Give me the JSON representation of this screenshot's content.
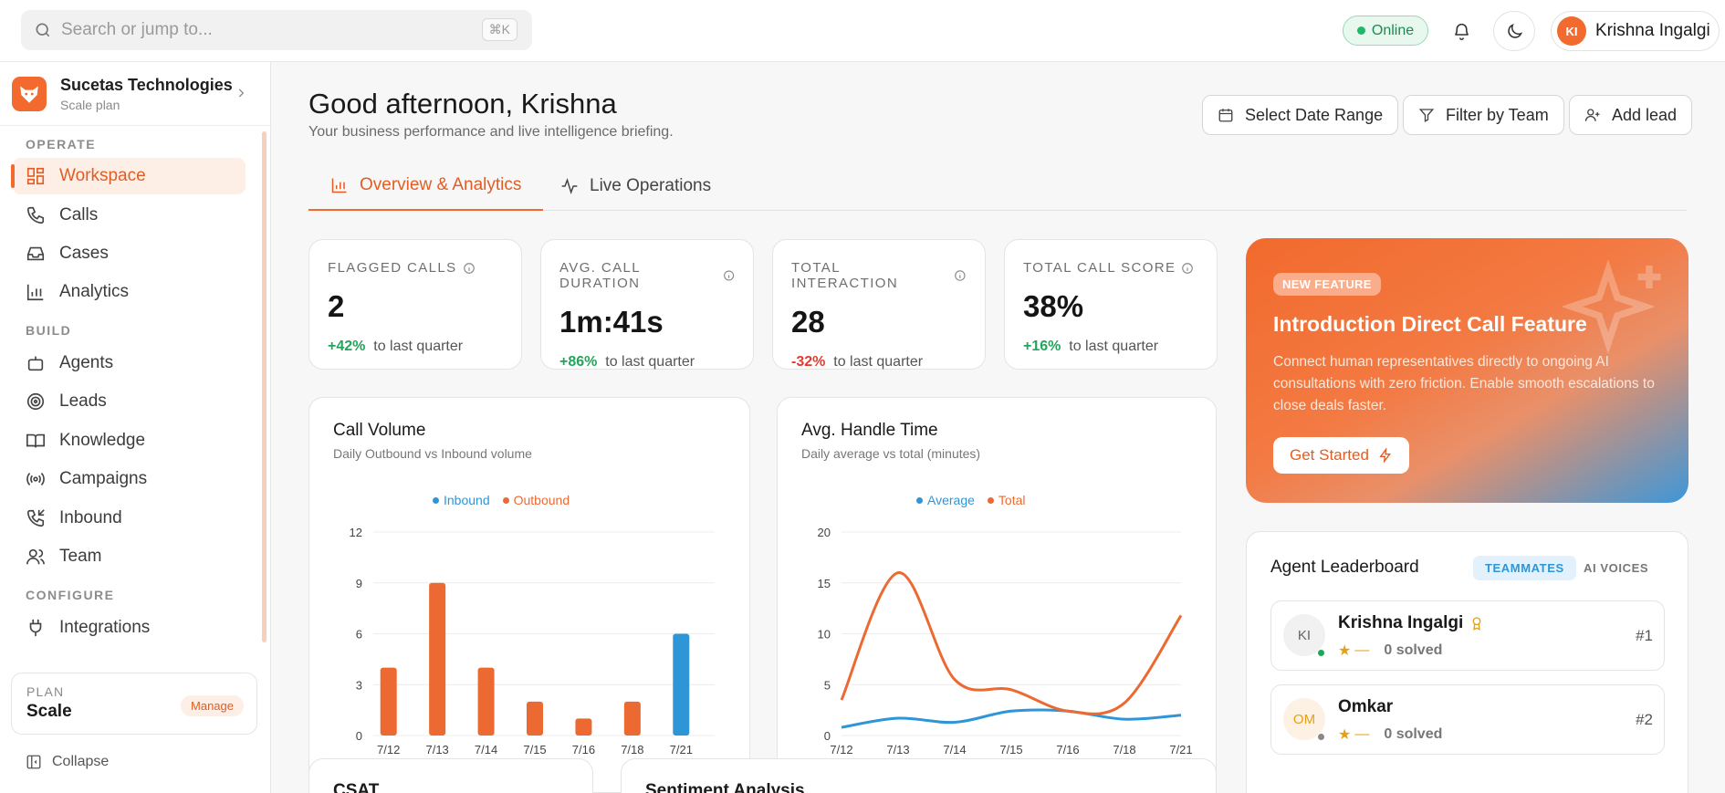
{
  "topbar": {
    "search_placeholder": "Search or jump to...",
    "shortcut": "⌘K",
    "status": "Online",
    "user": {
      "initials": "KI",
      "name": "Krishna Ingalgi"
    }
  },
  "sidebar": {
    "org": {
      "name": "Sucetas Technologies",
      "plan": "Scale plan"
    },
    "sections": {
      "operate": "OPERATE",
      "build": "BUILD",
      "configure": "CONFIGURE"
    },
    "items": [
      {
        "label": "Workspace"
      },
      {
        "label": "Calls"
      },
      {
        "label": "Cases"
      },
      {
        "label": "Analytics"
      },
      {
        "label": "Agents"
      },
      {
        "label": "Leads"
      },
      {
        "label": "Knowledge"
      },
      {
        "label": "Campaigns"
      },
      {
        "label": "Inbound"
      },
      {
        "label": "Team"
      },
      {
        "label": "Integrations"
      }
    ],
    "plan": {
      "label": "PLAN",
      "value": "Scale",
      "manage": "Manage"
    },
    "collapse": "Collapse"
  },
  "header": {
    "greeting": "Good afternoon, Krishna",
    "subtitle": "Your business performance and live intelligence briefing.",
    "buttons": {
      "date": "Select Date Range",
      "filter": "Filter by Team",
      "add": "Add lead"
    }
  },
  "tabs": [
    {
      "label": "Overview & Analytics"
    },
    {
      "label": "Live Operations"
    }
  ],
  "stats": [
    {
      "label": "FLAGGED CALLS",
      "value": "2",
      "change": "+42%",
      "suffix": "to last quarter"
    },
    {
      "label": "AVG. CALL DURATION",
      "value": "1m:41s",
      "change": "+86%",
      "suffix": "to last quarter"
    },
    {
      "label": "TOTAL INTERACTION",
      "value": "28",
      "change": "-32%",
      "suffix": "to last quarter"
    },
    {
      "label": "TOTAL CALL SCORE",
      "value": "38%",
      "change": "+16%",
      "suffix": "to last quarter"
    }
  ],
  "promo": {
    "badge": "NEW FEATURE",
    "title": "Introduction Direct Call Feature",
    "description": "Connect human representatives directly to ongoing AI consultations with zero friction. Enable smooth escalations to close deals faster.",
    "cta": "Get Started"
  },
  "colors": {
    "accent": "#f26a2d",
    "inbound": "#2e96d6",
    "outbound": "#ec6a32",
    "positive": "#22a55a",
    "negative": "#e23b2e"
  },
  "chart_data": [
    {
      "type": "bar",
      "title": "Call Volume",
      "subtitle": "Daily Outbound vs Inbound volume",
      "categories": [
        "7/12",
        "7/13",
        "7/14",
        "7/15",
        "7/16",
        "7/18",
        "7/21"
      ],
      "series": [
        {
          "name": "Inbound",
          "values": [
            0,
            0,
            0,
            0,
            0,
            0,
            6
          ]
        },
        {
          "name": "Outbound",
          "values": [
            4,
            9,
            4,
            2,
            1,
            2,
            0
          ]
        }
      ],
      "ylim": [
        0,
        12
      ],
      "yticks": [
        0,
        3,
        6,
        9,
        12
      ],
      "legend": "top-center"
    },
    {
      "type": "line",
      "title": "Avg. Handle Time",
      "subtitle": "Daily average vs total (minutes)",
      "categories": [
        "7/12",
        "7/13",
        "7/14",
        "7/15",
        "7/16",
        "7/18",
        "7/21"
      ],
      "series": [
        {
          "name": "Average",
          "values": [
            0.8,
            1.7,
            1.3,
            2.4,
            2.4,
            1.6,
            2.0
          ]
        },
        {
          "name": "Total",
          "values": [
            3.5,
            16,
            5.5,
            4.5,
            2.4,
            3.2,
            11.8
          ]
        }
      ],
      "ylim": [
        0,
        20
      ],
      "yticks": [
        0,
        5,
        10,
        15,
        20
      ],
      "legend": "top-center"
    }
  ],
  "leaderboard": {
    "title": "Agent Leaderboard",
    "toggles": {
      "teammates": "TEAMMATES",
      "ai": "AI VOICES"
    },
    "rows": [
      {
        "initials": "KI",
        "name": "Krishna Ingalgi",
        "rating": "—",
        "solved": "0 solved",
        "rank": "#1"
      },
      {
        "initials": "OM",
        "name": "Omkar",
        "rating": "—",
        "solved": "0 solved",
        "rank": "#2"
      }
    ]
  },
  "bottom_cards": {
    "csat": "CSAT",
    "sentiment": "Sentiment Analysis"
  }
}
